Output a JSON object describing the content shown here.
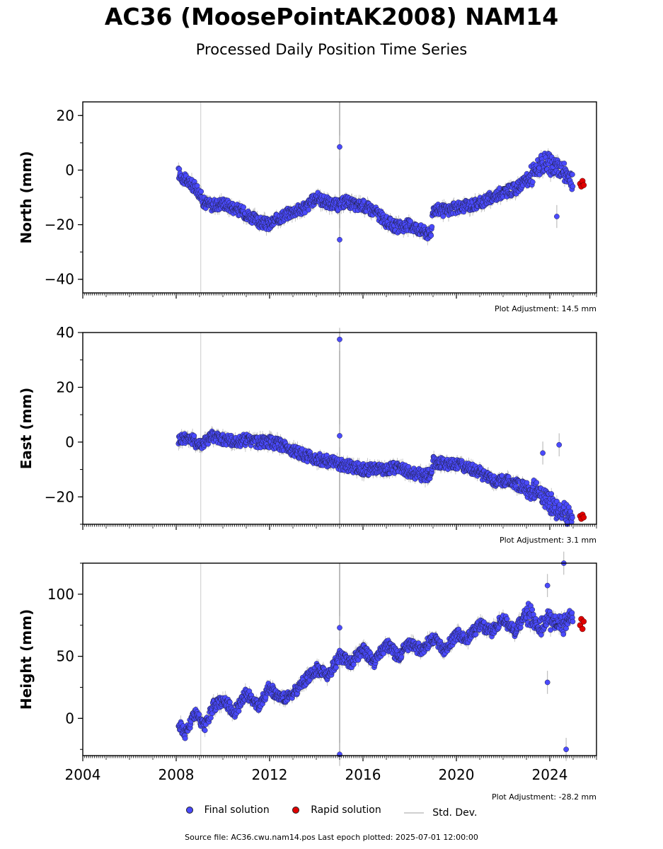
{
  "header": {
    "title": "AC36 (MoosePointAK2008) NAM14",
    "subtitle": "Processed Daily Position Time Series"
  },
  "legend": {
    "final": "Final solution",
    "rapid": "Rapid solution",
    "std": "Std. Dev."
  },
  "footer": {
    "source": "Source file: AC36.cwu.nam14.pos  Last epoch plotted: 2025-07-01 12:00:00"
  },
  "colors": {
    "final": "#4a4aff",
    "rapid": "#e00000",
    "std": "#b0b0b0"
  },
  "chart_data": [
    {
      "type": "scatter",
      "ylabel": "North (mm)",
      "adjustment": "Plot Adjustment: 14.5 mm",
      "xlim": [
        2004,
        2026
      ],
      "ylim": [
        -45,
        25
      ],
      "yticks": [
        20,
        0,
        -20,
        -40
      ],
      "xticks": [
        2004,
        2008,
        2012,
        2016,
        2020,
        2024
      ],
      "show_xtick_labels": false,
      "series": [
        {
          "role": "final",
          "x": [
            2008.1,
            2008.3,
            2008.6,
            2008.9,
            2009.2,
            2009.6,
            2010.0,
            2010.5,
            2011.0,
            2011.5,
            2012.0,
            2012.5,
            2013.0,
            2013.5,
            2014.0,
            2014.5,
            2015.0,
            2015.3,
            2015.6,
            2016.0,
            2016.5,
            2017.0,
            2017.5,
            2018.0,
            2018.5,
            2018.9,
            2019.0,
            2019.5,
            2020.0,
            2020.5,
            2021.0,
            2021.5,
            2022.0,
            2022.5,
            2023.0,
            2023.5,
            2024.0,
            2024.5,
            2025.0
          ],
          "y": [
            -1,
            -3,
            -5,
            -7,
            -12,
            -13,
            -12,
            -14,
            -16,
            -19,
            -20,
            -17,
            -15,
            -14,
            -10,
            -12,
            -13,
            -11,
            -13,
            -13,
            -15,
            -19,
            -21,
            -20,
            -22,
            -24,
            -14,
            -15,
            -14,
            -13,
            -12,
            -10,
            -8,
            -7,
            -4,
            1,
            2,
            0,
            -5
          ],
          "outliers": [
            [
              2015.0,
              8.5
            ],
            [
              2015.0,
              -25.5
            ],
            [
              2024.3,
              -17
            ]
          ]
        },
        {
          "role": "rapid",
          "x": [
            2025.3,
            2025.35,
            2025.4,
            2025.45
          ],
          "y": [
            -5,
            -6,
            -4,
            -5.5
          ]
        }
      ],
      "vlines": [
        2009.05,
        2015.0
      ]
    },
    {
      "type": "scatter",
      "ylabel": "East (mm)",
      "adjustment": "Plot Adjustment: 3.1 mm",
      "xlim": [
        2004,
        2026
      ],
      "ylim": [
        -30,
        40
      ],
      "yticks": [
        40,
        20,
        0,
        -20
      ],
      "xticks": [
        2004,
        2008,
        2012,
        2016,
        2020,
        2024
      ],
      "show_xtick_labels": false,
      "series": [
        {
          "role": "final",
          "x": [
            2008.1,
            2008.5,
            2009.0,
            2009.5,
            2010.0,
            2010.5,
            2011.0,
            2011.5,
            2012.0,
            2012.5,
            2013.0,
            2013.5,
            2014.0,
            2014.5,
            2015.0,
            2015.5,
            2016.0,
            2016.5,
            2017.0,
            2017.5,
            2018.0,
            2018.5,
            2018.9,
            2019.0,
            2019.5,
            2020.0,
            2020.5,
            2021.0,
            2021.5,
            2022.0,
            2022.5,
            2023.0,
            2023.5,
            2024.0,
            2024.5,
            2025.0
          ],
          "y": [
            1,
            2,
            -1,
            2,
            1,
            0,
            1,
            0,
            0,
            -1,
            -3,
            -5,
            -6,
            -7,
            -8,
            -9,
            -10,
            -10,
            -10,
            -9,
            -11,
            -12,
            -12,
            -7,
            -8,
            -8,
            -9,
            -11,
            -14,
            -14,
            -15,
            -17,
            -18,
            -22,
            -26,
            -27
          ],
          "outliers": [
            [
              2015.0,
              37.5
            ],
            [
              2015.0,
              2.3
            ],
            [
              2023.7,
              -4
            ],
            [
              2024.4,
              -1
            ]
          ]
        },
        {
          "role": "rapid",
          "x": [
            2025.3,
            2025.35,
            2025.4,
            2025.45
          ],
          "y": [
            -27,
            -28,
            -26.5,
            -27.5
          ]
        }
      ],
      "vlines": [
        2009.05,
        2015.0
      ]
    },
    {
      "type": "scatter",
      "ylabel": "Height (mm)",
      "adjustment": "Plot Adjustment: -28.2 mm",
      "xlim": [
        2004,
        2026
      ],
      "ylim": [
        -30,
        125
      ],
      "yticks": [
        100,
        50,
        0
      ],
      "xticks": [
        2004,
        2008,
        2012,
        2016,
        2020,
        2024
      ],
      "show_xtick_labels": true,
      "series": [
        {
          "role": "final",
          "x": [
            2008.1,
            2008.4,
            2008.8,
            2009.2,
            2009.6,
            2010.0,
            2010.5,
            2011.0,
            2011.5,
            2012.0,
            2012.5,
            2013.0,
            2013.5,
            2014.0,
            2014.5,
            2015.0,
            2015.5,
            2016.0,
            2016.5,
            2017.0,
            2017.5,
            2018.0,
            2018.5,
            2019.0,
            2019.5,
            2020.0,
            2020.5,
            2021.0,
            2021.5,
            2022.0,
            2022.5,
            2023.0,
            2023.5,
            2024.0,
            2024.5,
            2025.0
          ],
          "y": [
            -5,
            -12,
            5,
            -8,
            10,
            15,
            5,
            20,
            10,
            25,
            15,
            20,
            30,
            40,
            35,
            50,
            45,
            55,
            45,
            60,
            50,
            60,
            55,
            65,
            55,
            68,
            65,
            75,
            70,
            80,
            70,
            85,
            75,
            80,
            75,
            80
          ],
          "outliers": [
            [
              2015.0,
              -29
            ],
            [
              2015.0,
              73
            ],
            [
              2024.6,
              125
            ],
            [
              2023.9,
              107
            ],
            [
              2024.7,
              -25
            ],
            [
              2023.9,
              29
            ]
          ]
        },
        {
          "role": "rapid",
          "x": [
            2025.3,
            2025.35,
            2025.4,
            2025.45
          ],
          "y": [
            75,
            80,
            72,
            78
          ]
        }
      ],
      "vlines": [
        2009.05,
        2015.0
      ]
    }
  ]
}
